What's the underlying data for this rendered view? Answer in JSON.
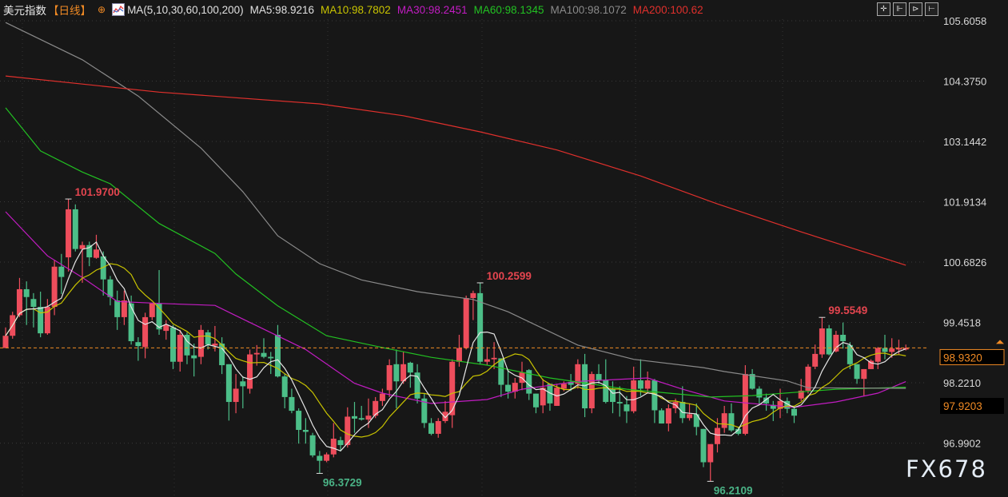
{
  "header": {
    "title": "美元指数",
    "period": "【日线】",
    "crosshair_icon": "circle-plus-icon",
    "ma_icon": "ma-chart-icon",
    "ma_params": "MA(5,10,30,60,100,200)",
    "ma5": "MA5:98.9216",
    "ma10": "MA10:98.7802",
    "ma30": "MA30:98.2451",
    "ma60": "MA60:98.1345",
    "ma100": "MA100:98.1072",
    "ma200": "MA200:100.62",
    "tools": [
      "crosshair-icon",
      "range-icon",
      "play-icon",
      "exit-icon"
    ]
  },
  "colors": {
    "background": "#171717",
    "up": "#ee4d5c",
    "down": "#4cbe88",
    "ma5": "#e6e6e6",
    "ma10": "#c9c400",
    "ma30": "#c21cc2",
    "ma60": "#22c022",
    "ma100": "#8a8a8a",
    "ma200": "#e0302c",
    "last_price": "#f08a24",
    "label_high": "#e4454f",
    "label_low": "#4ab386"
  },
  "watermark": "FX678",
  "chart_data": {
    "type": "candlestick",
    "y_ticks": [
      "105.6058",
      "104.3750",
      "103.1442",
      "101.9134",
      "100.6826",
      "99.4518",
      "98.2210",
      "96.9902"
    ],
    "ylim": [
      96.0,
      105.75
    ],
    "grid": true,
    "last_price": "98.9320",
    "last_price_value": 98.932,
    "marker_price": "97.9203",
    "annotations": [
      {
        "text": "101.9700",
        "candle": 10,
        "value": 101.97,
        "kind": "high"
      },
      {
        "text": "96.3729",
        "candle": 46,
        "value": 96.3729,
        "kind": "low"
      },
      {
        "text": "100.2599",
        "candle": 69,
        "value": 100.2599,
        "kind": "high"
      },
      {
        "text": "99.5549",
        "candle": 118,
        "value": 99.5549,
        "kind": "high"
      },
      {
        "text": "96.2109",
        "candle": 102,
        "value": 96.2109,
        "kind": "low"
      }
    ],
    "candles_ohlc": [
      [
        98.93,
        99.35,
        98.93,
        99.18
      ],
      [
        99.18,
        99.67,
        99.12,
        99.6
      ],
      [
        99.6,
        100.36,
        99.56,
        100.13
      ],
      [
        100.13,
        100.29,
        99.4,
        99.97
      ],
      [
        99.93,
        100.05,
        99.35,
        99.77
      ],
      [
        99.77,
        100.08,
        99.15,
        99.23
      ],
      [
        99.23,
        99.93,
        99.2,
        99.77
      ],
      [
        99.77,
        100.73,
        99.6,
        100.59
      ],
      [
        100.59,
        100.85,
        100.03,
        100.38
      ],
      [
        100.78,
        101.97,
        100.49,
        101.76
      ],
      [
        101.76,
        101.86,
        100.9,
        100.95
      ],
      [
        100.95,
        101.1,
        100.26,
        101.03
      ],
      [
        101.03,
        101.1,
        100.6,
        100.78
      ],
      [
        100.77,
        101.24,
        100.75,
        100.94
      ],
      [
        100.8,
        100.9,
        100.0,
        100.33
      ],
      [
        100.33,
        100.4,
        99.8,
        99.97
      ],
      [
        99.9,
        100.1,
        99.3,
        99.56
      ],
      [
        99.56,
        100.1,
        99.4,
        99.9
      ],
      [
        99.84,
        100.0,
        99.0,
        99.07
      ],
      [
        99.05,
        99.15,
        98.67,
        98.97
      ],
      [
        98.95,
        99.65,
        98.72,
        99.56
      ],
      [
        99.56,
        99.84,
        99.5,
        99.84
      ],
      [
        99.84,
        100.52,
        99.2,
        99.31
      ],
      [
        99.28,
        99.5,
        99.1,
        99.4
      ],
      [
        99.35,
        99.4,
        98.5,
        98.65
      ],
      [
        98.65,
        99.3,
        98.45,
        99.2
      ],
      [
        99.2,
        99.25,
        98.6,
        98.78
      ],
      [
        98.78,
        99.02,
        98.35,
        98.72
      ],
      [
        98.75,
        99.4,
        98.6,
        99.3
      ],
      [
        99.25,
        99.3,
        98.9,
        99.0
      ],
      [
        98.98,
        99.38,
        98.86,
        99.02
      ],
      [
        99.02,
        99.15,
        98.4,
        98.58
      ],
      [
        98.6,
        98.6,
        97.45,
        97.83
      ],
      [
        97.83,
        98.4,
        97.6,
        98.1
      ],
      [
        98.25,
        98.35,
        97.7,
        98.15
      ],
      [
        98.1,
        98.9,
        98.0,
        98.8
      ],
      [
        98.8,
        98.99,
        98.57,
        98.83
      ],
      [
        98.83,
        99.13,
        98.72,
        98.75
      ],
      [
        98.75,
        98.85,
        98.4,
        98.72
      ],
      [
        99.2,
        99.4,
        98.33,
        98.35
      ],
      [
        98.35,
        98.4,
        97.7,
        97.93
      ],
      [
        97.93,
        98.1,
        97.6,
        97.65
      ],
      [
        97.65,
        97.7,
        96.98,
        97.26
      ],
      [
        97.26,
        97.5,
        96.98,
        97.22
      ],
      [
        97.15,
        97.2,
        96.7,
        96.74
      ],
      [
        96.73,
        96.83,
        96.3729,
        96.63
      ],
      [
        96.63,
        96.8,
        96.6,
        96.76
      ],
      [
        96.76,
        97.4,
        96.7,
        97.08
      ],
      [
        97.05,
        97.12,
        96.82,
        96.95
      ],
      [
        96.95,
        97.72,
        96.9,
        97.53
      ],
      [
        97.54,
        97.83,
        97.2,
        97.49
      ],
      [
        97.5,
        97.75,
        97.45,
        97.47
      ],
      [
        97.47,
        97.9,
        97.3,
        97.55
      ],
      [
        97.55,
        97.93,
        97.5,
        97.85
      ],
      [
        97.85,
        98.1,
        97.75,
        98.0
      ],
      [
        98.07,
        98.7,
        97.93,
        98.58
      ],
      [
        98.6,
        98.9,
        97.7,
        98.25
      ],
      [
        98.25,
        98.86,
        98.2,
        98.6
      ],
      [
        98.63,
        98.65,
        98.12,
        98.43
      ],
      [
        98.43,
        98.6,
        97.8,
        97.9
      ],
      [
        97.9,
        98.0,
        97.3,
        97.4
      ],
      [
        97.4,
        97.5,
        97.15,
        97.18
      ],
      [
        97.18,
        97.5,
        97.1,
        97.44
      ],
      [
        97.44,
        97.85,
        97.4,
        97.63
      ],
      [
        97.56,
        98.7,
        97.3,
        98.65
      ],
      [
        98.65,
        99.2,
        98.55,
        98.93
      ],
      [
        98.93,
        100.0,
        98.9,
        99.95
      ],
      [
        99.95,
        100.1,
        99.5,
        100.05
      ],
      [
        100.05,
        100.2599,
        98.6,
        98.65
      ],
      [
        98.65,
        98.95,
        98.58,
        98.7
      ],
      [
        98.7,
        99.05,
        98.5,
        98.73
      ],
      [
        98.72,
        98.72,
        97.93,
        98.18
      ],
      [
        98.18,
        98.5,
        97.9,
        98.04
      ],
      [
        98.04,
        98.32,
        97.9,
        98.22
      ],
      [
        98.22,
        98.65,
        98.07,
        98.43
      ],
      [
        98.48,
        98.5,
        97.87,
        98.0
      ],
      [
        98.0,
        98.0,
        97.6,
        97.72
      ],
      [
        97.76,
        98.3,
        97.6,
        98.12
      ],
      [
        98.2,
        98.2,
        97.65,
        97.8
      ],
      [
        97.75,
        98.2,
        97.75,
        98.12
      ],
      [
        98.1,
        98.25,
        98.05,
        98.2
      ],
      [
        98.24,
        98.4,
        98.05,
        98.18
      ],
      [
        98.2,
        98.7,
        98.1,
        98.6
      ],
      [
        98.6,
        98.81,
        97.52,
        97.7
      ],
      [
        97.7,
        98.45,
        97.6,
        98.4
      ],
      [
        98.4,
        98.6,
        98.2,
        98.27
      ],
      [
        98.27,
        98.7,
        97.8,
        97.83
      ],
      [
        98.1,
        98.25,
        97.6,
        97.83
      ],
      [
        97.83,
        98.15,
        97.53,
        97.8
      ],
      [
        97.78,
        97.95,
        97.4,
        97.64
      ],
      [
        97.64,
        98.55,
        97.6,
        98.27
      ],
      [
        98.27,
        98.7,
        97.95,
        98.1
      ],
      [
        98.1,
        98.45,
        98.0,
        98.27
      ],
      [
        98.27,
        98.3,
        97.4,
        97.66
      ],
      [
        97.66,
        97.7,
        97.39,
        97.39
      ],
      [
        97.39,
        97.78,
        97.23,
        97.7
      ],
      [
        97.7,
        97.9,
        97.6,
        97.83
      ],
      [
        97.83,
        98.15,
        97.4,
        97.5
      ],
      [
        97.5,
        97.8,
        97.45,
        97.58
      ],
      [
        97.58,
        97.8,
        97.15,
        97.32
      ],
      [
        97.28,
        97.28,
        96.5,
        96.6
      ],
      [
        96.6,
        96.97,
        96.2109,
        96.97
      ],
      [
        96.97,
        97.5,
        96.8,
        97.3
      ],
      [
        97.3,
        97.75,
        97.2,
        97.6
      ],
      [
        97.6,
        97.8,
        97.22,
        97.25
      ],
      [
        97.28,
        97.32,
        97.15,
        97.18
      ],
      [
        97.18,
        98.58,
        97.15,
        98.4
      ],
      [
        98.4,
        98.5,
        98.08,
        98.1
      ],
      [
        98.1,
        98.15,
        97.77,
        97.92
      ],
      [
        97.92,
        98.0,
        97.65,
        97.8
      ],
      [
        97.77,
        97.85,
        97.44,
        97.69
      ],
      [
        97.69,
        98.1,
        97.5,
        97.85
      ],
      [
        97.85,
        97.92,
        97.6,
        97.69
      ],
      [
        97.69,
        97.75,
        97.4,
        97.55
      ],
      [
        97.9,
        98.3,
        97.85,
        98.06
      ],
      [
        98.06,
        98.6,
        98.0,
        98.55
      ],
      [
        98.55,
        99.0,
        98.5,
        98.81
      ],
      [
        98.8,
        99.5549,
        98.73,
        99.33
      ],
      [
        99.33,
        99.4,
        98.78,
        98.8
      ],
      [
        98.86,
        99.28,
        98.84,
        99.2
      ],
      [
        99.2,
        99.45,
        98.92,
        99.07
      ],
      [
        98.99,
        99.05,
        98.5,
        98.6
      ],
      [
        98.6,
        98.6,
        98.2,
        98.3
      ],
      [
        98.3,
        98.5,
        97.95,
        98.5
      ],
      [
        98.5,
        98.7,
        98.5,
        98.67
      ],
      [
        98.65,
        98.95,
        98.5,
        98.93
      ],
      [
        98.93,
        99.2,
        98.7,
        98.85
      ],
      [
        98.85,
        99.13,
        98.73,
        98.92
      ],
      [
        98.9,
        99.1,
        98.8,
        98.93
      ],
      [
        98.9,
        99.0,
        98.88,
        98.932
      ]
    ],
    "moving_averages": [
      {
        "name": "MA30",
        "points": [
          [
            1,
            101.71
          ],
          [
            7,
            100.81
          ],
          [
            12,
            100.37
          ],
          [
            17,
            99.88
          ],
          [
            23,
            99.84
          ],
          [
            31,
            99.8
          ],
          [
            34,
            99.59
          ],
          [
            44,
            98.9
          ],
          [
            51,
            98.21
          ],
          [
            55,
            98.01
          ],
          [
            62,
            97.8
          ],
          [
            70,
            97.88
          ],
          [
            75,
            98.09
          ],
          [
            83,
            98.25
          ],
          [
            93,
            98.32
          ],
          [
            98,
            98.09
          ],
          [
            104,
            97.85
          ],
          [
            114,
            97.72
          ],
          [
            120,
            97.83
          ],
          [
            126,
            98.01
          ],
          [
            130,
            98.245
          ]
        ]
      },
      {
        "name": "MA60",
        "points": [
          [
            1,
            103.83
          ],
          [
            6,
            102.95
          ],
          [
            12,
            102.52
          ],
          [
            16,
            102.28
          ],
          [
            23,
            101.47
          ],
          [
            31,
            100.86
          ],
          [
            34,
            100.44
          ],
          [
            40,
            99.79
          ],
          [
            47,
            99.18
          ],
          [
            55,
            98.94
          ],
          [
            62,
            98.74
          ],
          [
            70,
            98.58
          ],
          [
            79,
            98.32
          ],
          [
            90,
            98.09
          ],
          [
            102,
            97.93
          ],
          [
            108,
            97.96
          ],
          [
            120,
            98.09
          ],
          [
            130,
            98.13
          ]
        ]
      },
      {
        "name": "MA100",
        "points": [
          [
            1,
            105.57
          ],
          [
            12,
            104.81
          ],
          [
            20,
            104.07
          ],
          [
            29,
            103.01
          ],
          [
            35,
            102.12
          ],
          [
            40,
            101.22
          ],
          [
            46,
            100.65
          ],
          [
            52,
            100.32
          ],
          [
            60,
            100.08
          ],
          [
            68,
            99.92
          ],
          [
            73,
            99.67
          ],
          [
            83,
            98.99
          ],
          [
            91,
            98.7
          ],
          [
            101,
            98.53
          ],
          [
            104,
            98.45
          ],
          [
            113,
            98.26
          ],
          [
            116,
            98.12
          ],
          [
            130,
            98.107
          ]
        ]
      },
      {
        "name": "MA200",
        "points": [
          [
            1,
            104.48
          ],
          [
            23,
            104.15
          ],
          [
            46,
            103.91
          ],
          [
            58,
            103.67
          ],
          [
            69,
            103.34
          ],
          [
            80,
            102.97
          ],
          [
            92,
            102.44
          ],
          [
            103,
            101.87
          ],
          [
            115,
            101.3
          ],
          [
            130,
            100.62
          ]
        ]
      }
    ]
  }
}
